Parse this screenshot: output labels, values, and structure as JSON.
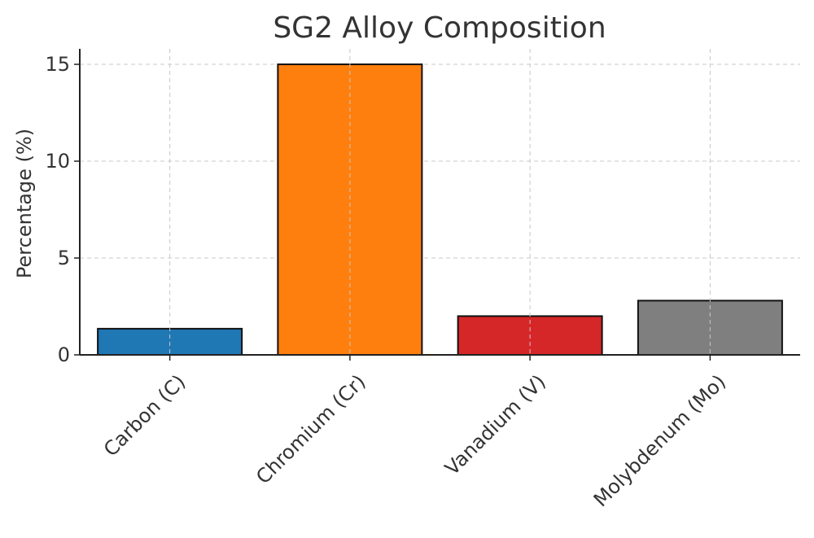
{
  "chart_data": {
    "type": "bar",
    "title": "SG2 Alloy Composition",
    "xlabel": "",
    "ylabel": "Percentage (%)",
    "categories": [
      "Carbon (C)",
      "Chromium (Cr)",
      "Vanadium (V)",
      "Molybdenum (Mo)"
    ],
    "values": [
      1.35,
      15.0,
      2.0,
      2.8
    ],
    "colors": [
      "#1f77b4",
      "#ff7f0e",
      "#d62728",
      "#7f7f7f"
    ],
    "ylim": [
      0,
      15.8
    ],
    "yticks": [
      0,
      5,
      10,
      15
    ],
    "grid": true
  }
}
